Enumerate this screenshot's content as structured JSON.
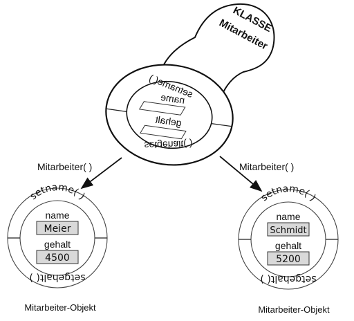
{
  "stamp": {
    "label_line1": "KLASSE",
    "label_line2": "Mitarbeiter",
    "method_top": "setname( )",
    "method_bottom": "setgehalt( )",
    "attr1": "name",
    "attr2": "gehalt"
  },
  "arrows": {
    "left_label": "Mitarbeiter( )",
    "right_label": "Mitarbeiter( )"
  },
  "objects": [
    {
      "method_top": "setname( )",
      "method_bottom": "setgehalt( )",
      "attr1_label": "name",
      "attr1_value": "Meier",
      "attr2_label": "gehalt",
      "attr2_value": "4500",
      "caption": "Mitarbeiter-Objekt"
    },
    {
      "method_top": "setname( )",
      "method_bottom": "setgehalt( )",
      "attr1_label": "name",
      "attr1_value": "Schmidt",
      "attr2_label": "gehalt",
      "attr2_value": "5200",
      "caption": "Mitarbeiter-Objekt"
    }
  ]
}
